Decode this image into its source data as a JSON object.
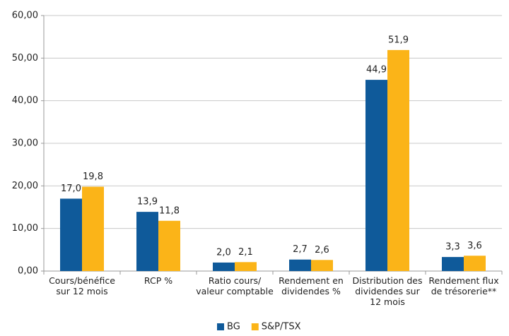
{
  "chart_data": {
    "type": "bar",
    "categories": [
      [
        "Cours/bénéfice",
        "sur 12 mois"
      ],
      [
        "RCP %"
      ],
      [
        "Ratio cours/",
        "valeur comptable"
      ],
      [
        "Rendement en",
        "dividendes %"
      ],
      [
        "Distribution des",
        "dividendes sur",
        "12 mois"
      ],
      [
        "Rendement flux",
        "de trésorerie**"
      ]
    ],
    "series": [
      {
        "name": "BG",
        "color": "#0f5a9a",
        "values": [
          17.0,
          13.9,
          2.0,
          2.7,
          44.9,
          3.3
        ],
        "value_labels": [
          "17,0",
          "13,9",
          "2,0",
          "2,7",
          "44,9",
          "3,3"
        ]
      },
      {
        "name": "S&P/TSX",
        "color": "#fbb418",
        "values": [
          19.8,
          11.8,
          2.1,
          2.6,
          51.9,
          3.6
        ],
        "value_labels": [
          "19,8",
          "11,8",
          "2,1",
          "2,6",
          "51,9",
          "3,6"
        ]
      }
    ],
    "ylim": [
      0,
      60
    ],
    "yticks": [
      {
        "value": 0,
        "label": "0,00"
      },
      {
        "value": 10,
        "label": "10,00"
      },
      {
        "value": 20,
        "label": "20,00"
      },
      {
        "value": 30,
        "label": "30,00"
      },
      {
        "value": 40,
        "label": "40,00"
      },
      {
        "value": 50,
        "label": "50,00"
      },
      {
        "value": 60,
        "label": "60,00"
      }
    ],
    "grid": true,
    "legend": "bottom"
  }
}
